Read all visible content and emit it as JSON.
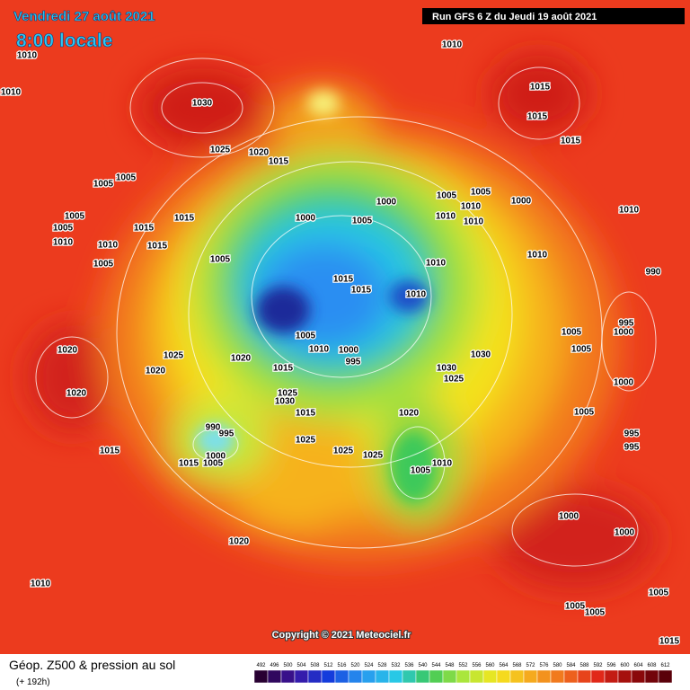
{
  "header": {
    "date": "Vendredi 27 août 2021",
    "time": "8:00 locale",
    "run": "Run GFS 6 Z du Jeudi 19 août 2021"
  },
  "map": {
    "pressure_labels": [
      1010,
      1010,
      1010,
      1030,
      1015,
      1015,
      1015,
      1025,
      1020,
      1015,
      1005,
      1005,
      1005,
      1005,
      1010,
      1010,
      1005,
      1015,
      1015,
      1015,
      1005,
      1000,
      1005,
      1000,
      1005,
      1005,
      1010,
      1010,
      1010,
      1000,
      1010,
      1010,
      1010,
      990,
      1015,
      1015,
      1010,
      1005,
      1010,
      1000,
      995,
      1020,
      1025,
      1020,
      1020,
      1020,
      1015,
      1030,
      1030,
      1025,
      1025,
      1030,
      1015,
      1020,
      1005,
      990,
      995,
      1015,
      1025,
      1025,
      1025,
      1000,
      1005,
      1015,
      1010,
      1005,
      995,
      995,
      1000,
      1000,
      1020,
      1010,
      1005,
      1005,
      1005,
      1015,
      995,
      1000,
      1005,
      1005,
      1000
    ],
    "copyright": "Copyright © 2021 Meteociel.fr"
  },
  "footer": {
    "title": "Géop. Z500 & pression au sol",
    "lead": "(+ 192h)",
    "scale": [
      492,
      496,
      500,
      504,
      508,
      512,
      516,
      520,
      524,
      528,
      532,
      536,
      540,
      544,
      548,
      552,
      556,
      560,
      564,
      568,
      572,
      576,
      580,
      584,
      588,
      592,
      596,
      600,
      604,
      608,
      612
    ]
  }
}
